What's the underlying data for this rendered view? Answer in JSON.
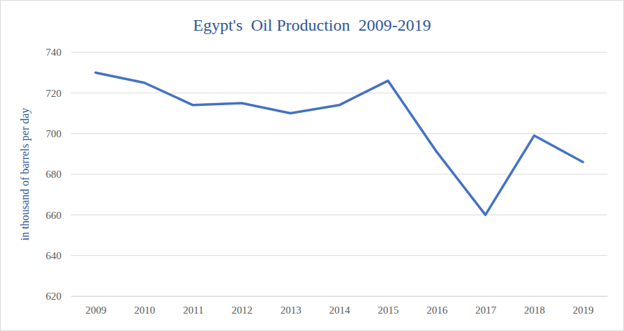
{
  "chart_data": {
    "type": "line",
    "title": "Egypt's  Oil Production  2009-2019",
    "y_label": "in thousand of barrels per day",
    "categories": [
      "2009",
      "2010",
      "2011",
      "2012",
      "2013",
      "2014",
      "2015",
      "2016",
      "2017",
      "2018",
      "2019"
    ],
    "values": [
      730,
      725,
      714,
      715,
      710,
      714,
      726,
      691,
      660,
      699,
      686
    ],
    "color": "#4472c4",
    "ylim": [
      620,
      740
    ],
    "yticks": [
      620,
      640,
      660,
      680,
      700,
      720,
      740
    ],
    "grid": true
  }
}
